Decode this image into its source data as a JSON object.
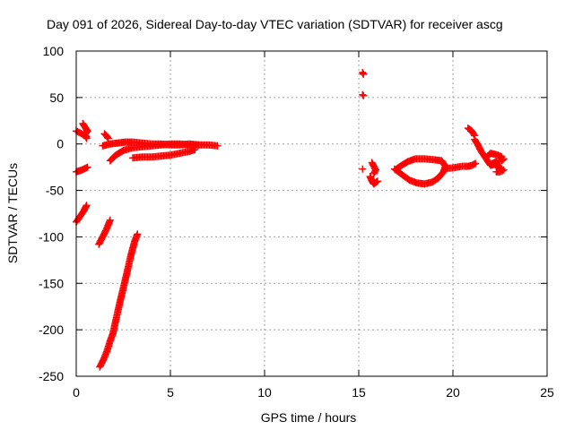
{
  "chart_data": {
    "type": "scatter",
    "title": "Day 091 of 2026, Sidereal Day-to-day VTEC variation (SDTVAR) for receiver ascg",
    "xlabel": "GPS time / hours",
    "ylabel": "SDTVAR / TECUs",
    "xlim": [
      0,
      25
    ],
    "ylim": [
      -250,
      100
    ],
    "xticks": [
      0,
      5,
      10,
      15,
      20,
      25
    ],
    "yticks": [
      -250,
      -200,
      -150,
      -100,
      -50,
      0,
      50,
      100
    ],
    "grid": true,
    "marker_color": "#ff0000",
    "series": [
      {
        "segments": [
          [
            [
              0.0,
              -30
            ],
            [
              0.3,
              -28
            ],
            [
              0.6,
              -25
            ]
          ],
          [
            [
              0.0,
              -84
            ],
            [
              0.2,
              -78
            ],
            [
              0.4,
              -72
            ],
            [
              0.55,
              -66
            ]
          ],
          [
            [
              0.0,
              14
            ],
            [
              0.2,
              12
            ],
            [
              0.4,
              10
            ],
            [
              0.55,
              8
            ]
          ],
          [
            [
              0.35,
              22
            ],
            [
              0.5,
              17
            ],
            [
              0.6,
              14
            ],
            [
              0.45,
              10
            ],
            [
              0.55,
              6
            ]
          ],
          [
            [
              1.2,
              -108
            ],
            [
              1.4,
              -100
            ],
            [
              1.6,
              -92
            ],
            [
              1.8,
              -82
            ]
          ],
          [
            [
              1.25,
              -240
            ],
            [
              1.45,
              -232
            ],
            [
              1.65,
              -222
            ],
            [
              1.8,
              -212
            ],
            [
              1.95,
              -204
            ],
            [
              2.1,
              -190
            ],
            [
              2.3,
              -172
            ],
            [
              2.5,
              -155
            ],
            [
              2.7,
              -138
            ],
            [
              2.9,
              -120
            ],
            [
              3.1,
              -105
            ],
            [
              3.25,
              -97
            ]
          ],
          [
            [
              1.5,
              11
            ],
            [
              1.6,
              9
            ],
            [
              1.7,
              6
            ]
          ],
          [
            [
              1.4,
              -2
            ],
            [
              1.8,
              0
            ],
            [
              2.2,
              1
            ],
            [
              2.6,
              2
            ],
            [
              3.0,
              2
            ],
            [
              3.5,
              1
            ],
            [
              4.0,
              0
            ],
            [
              4.5,
              0
            ],
            [
              5.0,
              -1
            ],
            [
              5.5,
              -1
            ],
            [
              6.0,
              0
            ],
            [
              6.5,
              -1
            ],
            [
              7.0,
              -1
            ],
            [
              7.5,
              -2
            ]
          ],
          [
            [
              1.8,
              -18
            ],
            [
              2.1,
              -12
            ],
            [
              2.5,
              -7
            ],
            [
              3.0,
              -4
            ],
            [
              3.5,
              -3
            ],
            [
              4.0,
              -2
            ],
            [
              4.5,
              -1
            ],
            [
              5.0,
              0
            ],
            [
              5.5,
              0
            ],
            [
              6.0,
              -1
            ],
            [
              6.5,
              -1
            ]
          ],
          [
            [
              3.0,
              -15
            ],
            [
              3.5,
              -14
            ],
            [
              4.0,
              -14
            ],
            [
              4.5,
              -13
            ],
            [
              5.0,
              -12
            ],
            [
              5.5,
              -10
            ],
            [
              6.0,
              -8
            ],
            [
              6.3,
              -6
            ]
          ],
          [
            [
              15.2,
              77
            ],
            [
              15.25,
              75
            ]
          ],
          [
            [
              15.2,
              53
            ],
            [
              15.25,
              52
            ]
          ],
          [
            [
              15.2,
              -27
            ]
          ],
          [
            [
              15.6,
              -35
            ],
            [
              15.7,
              -40
            ],
            [
              15.8,
              -43
            ],
            [
              16.0,
              -40
            ]
          ],
          [
            [
              15.7,
              -20
            ],
            [
              15.8,
              -24
            ],
            [
              15.9,
              -28
            ],
            [
              15.8,
              -32
            ]
          ],
          [
            [
              16.9,
              -27
            ],
            [
              17.3,
              -33
            ],
            [
              17.7,
              -39
            ],
            [
              18.1,
              -42
            ],
            [
              18.5,
              -43
            ],
            [
              18.9,
              -41
            ],
            [
              19.2,
              -37
            ],
            [
              19.5,
              -30
            ],
            [
              19.6,
              -24
            ],
            [
              19.4,
              -18
            ],
            [
              19.0,
              -17
            ],
            [
              18.5,
              -16
            ],
            [
              18.0,
              -16
            ],
            [
              17.6,
              -19
            ],
            [
              17.2,
              -24
            ],
            [
              17.0,
              -27
            ]
          ],
          [
            [
              19.6,
              -26
            ],
            [
              19.9,
              -26
            ],
            [
              20.2,
              -25
            ],
            [
              20.5,
              -24
            ],
            [
              20.8,
              -24
            ],
            [
              21.0,
              -23
            ],
            [
              21.2,
              -21
            ]
          ],
          [
            [
              20.8,
              17
            ],
            [
              21.0,
              14
            ],
            [
              21.15,
              9
            ]
          ],
          [
            [
              21.15,
              5
            ],
            [
              21.3,
              0
            ],
            [
              21.5,
              -8
            ],
            [
              21.7,
              -14
            ],
            [
              21.9,
              -20
            ],
            [
              22.0,
              -23
            ],
            [
              22.2,
              -22
            ],
            [
              22.4,
              -24
            ],
            [
              22.6,
              -27
            ]
          ],
          [
            [
              21.8,
              -14
            ],
            [
              22.0,
              -10
            ],
            [
              22.2,
              -11
            ],
            [
              22.4,
              -12
            ],
            [
              22.6,
              -14
            ]
          ],
          [
            [
              22.0,
              -22
            ],
            [
              22.3,
              -19
            ],
            [
              22.6,
              -18
            ],
            [
              22.7,
              -16
            ]
          ],
          [
            [
              22.3,
              -30
            ],
            [
              22.5,
              -30
            ],
            [
              22.7,
              -28
            ]
          ]
        ]
      }
    ]
  }
}
